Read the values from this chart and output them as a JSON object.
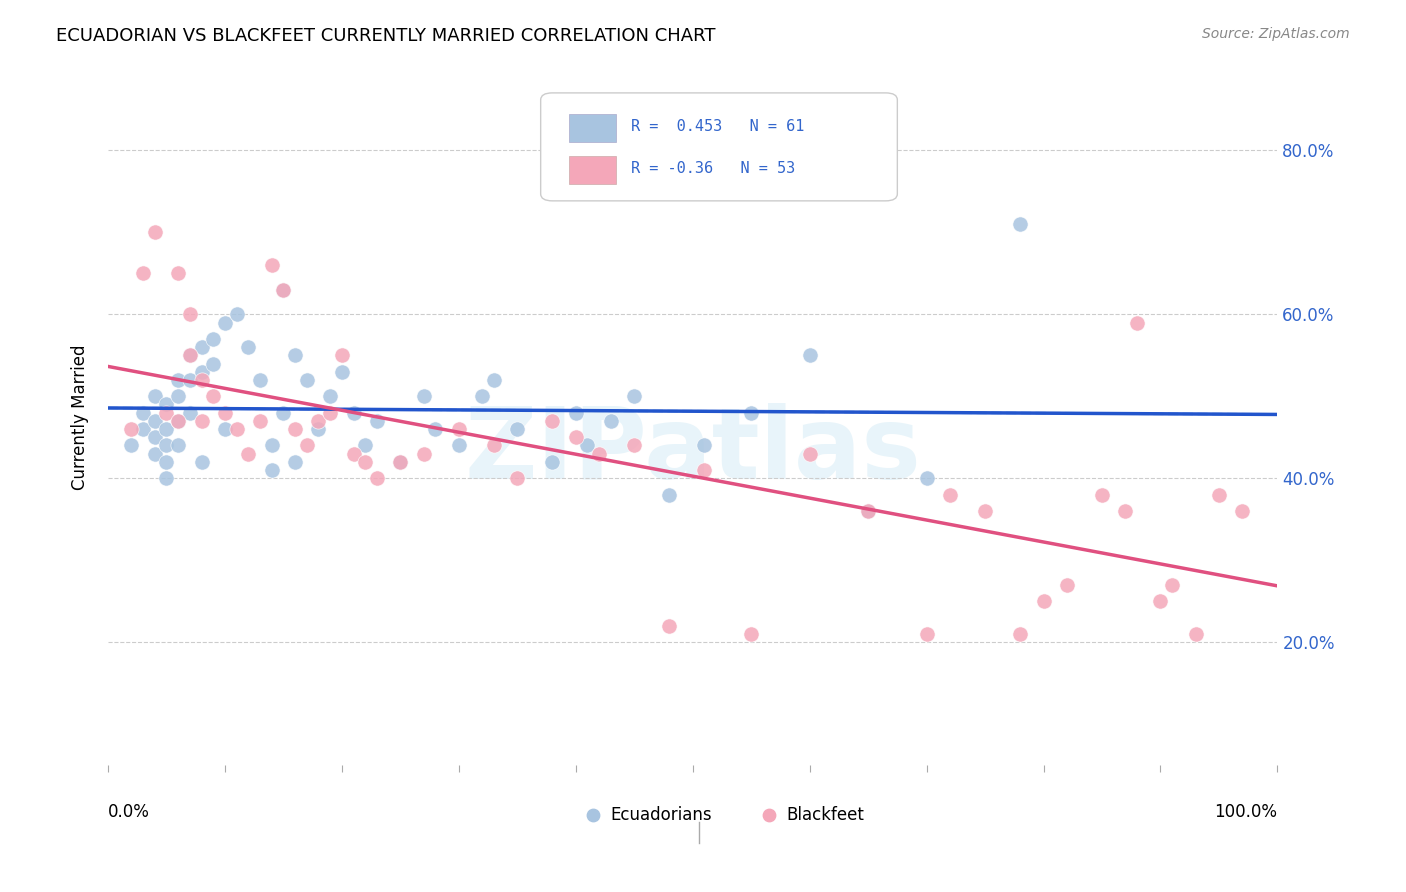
{
  "title": "ECUADORIAN VS BLACKFEET CURRENTLY MARRIED CORRELATION CHART",
  "source": "Source: ZipAtlas.com",
  "ylabel": "Currently Married",
  "ytick_values": [
    0.2,
    0.4,
    0.6,
    0.8
  ],
  "xmin": 0.0,
  "xmax": 1.0,
  "ymin": 0.05,
  "ymax": 0.9,
  "ecuadorians_r": 0.453,
  "ecuadorians_n": 61,
  "blackfeet_r": -0.36,
  "blackfeet_n": 53,
  "ecuadorian_color": "#a8c4e0",
  "blackfeet_color": "#f4a7b9",
  "trend_blue": "#2255cc",
  "trend_pink": "#e05080",
  "trend_dashed_color": "#aaccee",
  "watermark": "ZIPatlas",
  "ecuadorians_x": [
    0.02,
    0.03,
    0.03,
    0.04,
    0.04,
    0.04,
    0.04,
    0.05,
    0.05,
    0.05,
    0.05,
    0.05,
    0.06,
    0.06,
    0.06,
    0.06,
    0.07,
    0.07,
    0.07,
    0.08,
    0.08,
    0.08,
    0.09,
    0.09,
    0.1,
    0.1,
    0.11,
    0.12,
    0.13,
    0.14,
    0.14,
    0.15,
    0.15,
    0.16,
    0.16,
    0.17,
    0.18,
    0.19,
    0.2,
    0.21,
    0.22,
    0.23,
    0.25,
    0.27,
    0.28,
    0.3,
    0.32,
    0.33,
    0.35,
    0.38,
    0.4,
    0.41,
    0.43,
    0.45,
    0.48,
    0.51,
    0.55,
    0.6,
    0.65,
    0.7,
    0.78
  ],
  "ecuadorians_y": [
    0.44,
    0.48,
    0.46,
    0.47,
    0.45,
    0.43,
    0.5,
    0.49,
    0.46,
    0.44,
    0.42,
    0.4,
    0.52,
    0.5,
    0.47,
    0.44,
    0.55,
    0.52,
    0.48,
    0.56,
    0.53,
    0.42,
    0.57,
    0.54,
    0.59,
    0.46,
    0.6,
    0.56,
    0.52,
    0.44,
    0.41,
    0.63,
    0.48,
    0.55,
    0.42,
    0.52,
    0.46,
    0.5,
    0.53,
    0.48,
    0.44,
    0.47,
    0.42,
    0.5,
    0.46,
    0.44,
    0.5,
    0.52,
    0.46,
    0.42,
    0.48,
    0.44,
    0.47,
    0.5,
    0.38,
    0.44,
    0.48,
    0.55,
    0.36,
    0.4,
    0.71
  ],
  "blackfeet_x": [
    0.02,
    0.03,
    0.04,
    0.05,
    0.06,
    0.06,
    0.07,
    0.07,
    0.08,
    0.08,
    0.09,
    0.1,
    0.11,
    0.12,
    0.13,
    0.14,
    0.15,
    0.16,
    0.17,
    0.18,
    0.19,
    0.2,
    0.21,
    0.22,
    0.23,
    0.25,
    0.27,
    0.3,
    0.33,
    0.35,
    0.38,
    0.4,
    0.42,
    0.45,
    0.48,
    0.51,
    0.55,
    0.6,
    0.65,
    0.7,
    0.72,
    0.75,
    0.78,
    0.8,
    0.82,
    0.85,
    0.87,
    0.88,
    0.9,
    0.91,
    0.93,
    0.95,
    0.97
  ],
  "blackfeet_y": [
    0.46,
    0.65,
    0.7,
    0.48,
    0.65,
    0.47,
    0.6,
    0.55,
    0.52,
    0.47,
    0.5,
    0.48,
    0.46,
    0.43,
    0.47,
    0.66,
    0.63,
    0.46,
    0.44,
    0.47,
    0.48,
    0.55,
    0.43,
    0.42,
    0.4,
    0.42,
    0.43,
    0.46,
    0.44,
    0.4,
    0.47,
    0.45,
    0.43,
    0.44,
    0.22,
    0.41,
    0.21,
    0.43,
    0.36,
    0.21,
    0.38,
    0.36,
    0.21,
    0.25,
    0.27,
    0.38,
    0.36,
    0.59,
    0.25,
    0.27,
    0.21,
    0.38,
    0.36
  ]
}
